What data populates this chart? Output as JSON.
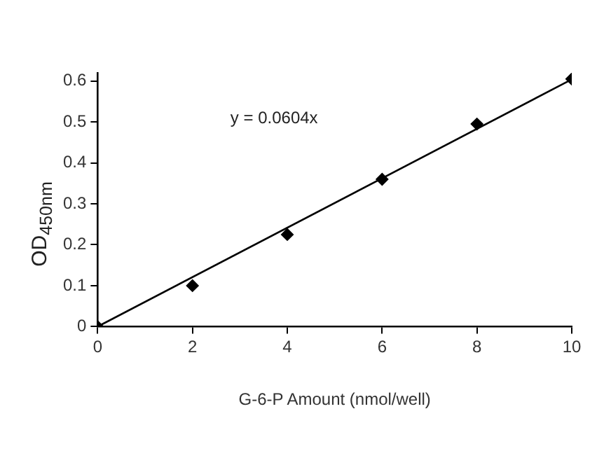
{
  "chart_data": {
    "type": "scatter",
    "xlabel": "G-6-P Amount (nmol/well)",
    "ylabel": "OD$_{450nm}$",
    "series": [
      {
        "color": "#000000",
        "marker": "diamond",
        "x": [
          0,
          2,
          4,
          6,
          8,
          10
        ],
        "values": [
          0,
          0.1,
          0.225,
          0.36,
          0.495,
          0.605
        ]
      },
      {
        "type": "line",
        "color": "#000000",
        "marker": "none",
        "x": [
          0,
          10
        ],
        "values": [
          0,
          0.604
        ]
      }
    ],
    "xlim": [
      0,
      10
    ],
    "xticks": [
      0,
      2,
      4,
      6,
      8,
      10
    ],
    "ylim": [
      0,
      0.62
    ],
    "yticks": [
      0,
      0.1,
      0.2,
      0.3,
      0.4,
      0.5,
      0.6
    ],
    "grid": false,
    "legend": false,
    "annotations": [
      "y = 0.0604x"
    ]
  }
}
